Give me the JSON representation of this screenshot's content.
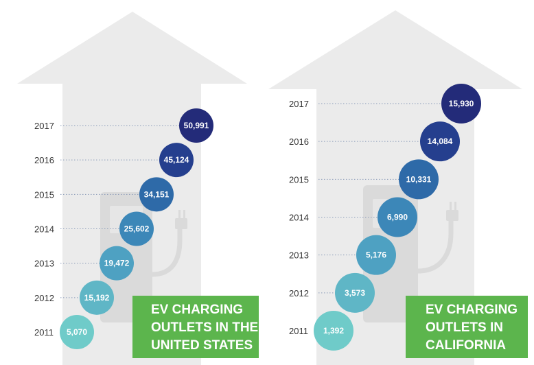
{
  "colors": {
    "background_shape": "#ebebeb",
    "charger_shape": "#dadada",
    "callout_box": "#5cb54d",
    "bubble_scale": [
      "#6fcbc9",
      "#5fb6c6",
      "#4ea1c2",
      "#3c87b8",
      "#2e6aa8",
      "#253f8e",
      "#232b79"
    ]
  },
  "chart_data": [
    {
      "type": "scatter",
      "title": "EV CHARGING OUTLETS IN THE UNITED STATES",
      "title_lines": [
        "EV CHARGING",
        "OUTLETS IN THE",
        "UNITED STATES"
      ],
      "categories": [
        "2011",
        "2012",
        "2013",
        "2014",
        "2015",
        "2016",
        "2017"
      ],
      "values": [
        5070,
        15192,
        19472,
        25602,
        34151,
        45124,
        50991
      ],
      "labels": [
        "5,070",
        "15,192",
        "19,472",
        "25,602",
        "34,151",
        "45,124",
        "50,991"
      ],
      "xlabel": "",
      "ylabel": "",
      "grid": "dotted leader line per year"
    },
    {
      "type": "scatter",
      "title": "EV CHARGING OUTLETS IN CALIFORNIA",
      "title_lines": [
        "EV CHARGING",
        "OUTLETS IN",
        "CALIFORNIA"
      ],
      "categories": [
        "2011",
        "2012",
        "2013",
        "2014",
        "2015",
        "2016",
        "2017"
      ],
      "values": [
        1392,
        3573,
        5176,
        6990,
        10331,
        14084,
        15930
      ],
      "labels": [
        "1,392",
        "3,573",
        "5,176",
        "6,990",
        "10,331",
        "14,084",
        "15,930"
      ],
      "xlabel": "",
      "ylabel": "",
      "grid": "dotted leader line per year"
    }
  ]
}
